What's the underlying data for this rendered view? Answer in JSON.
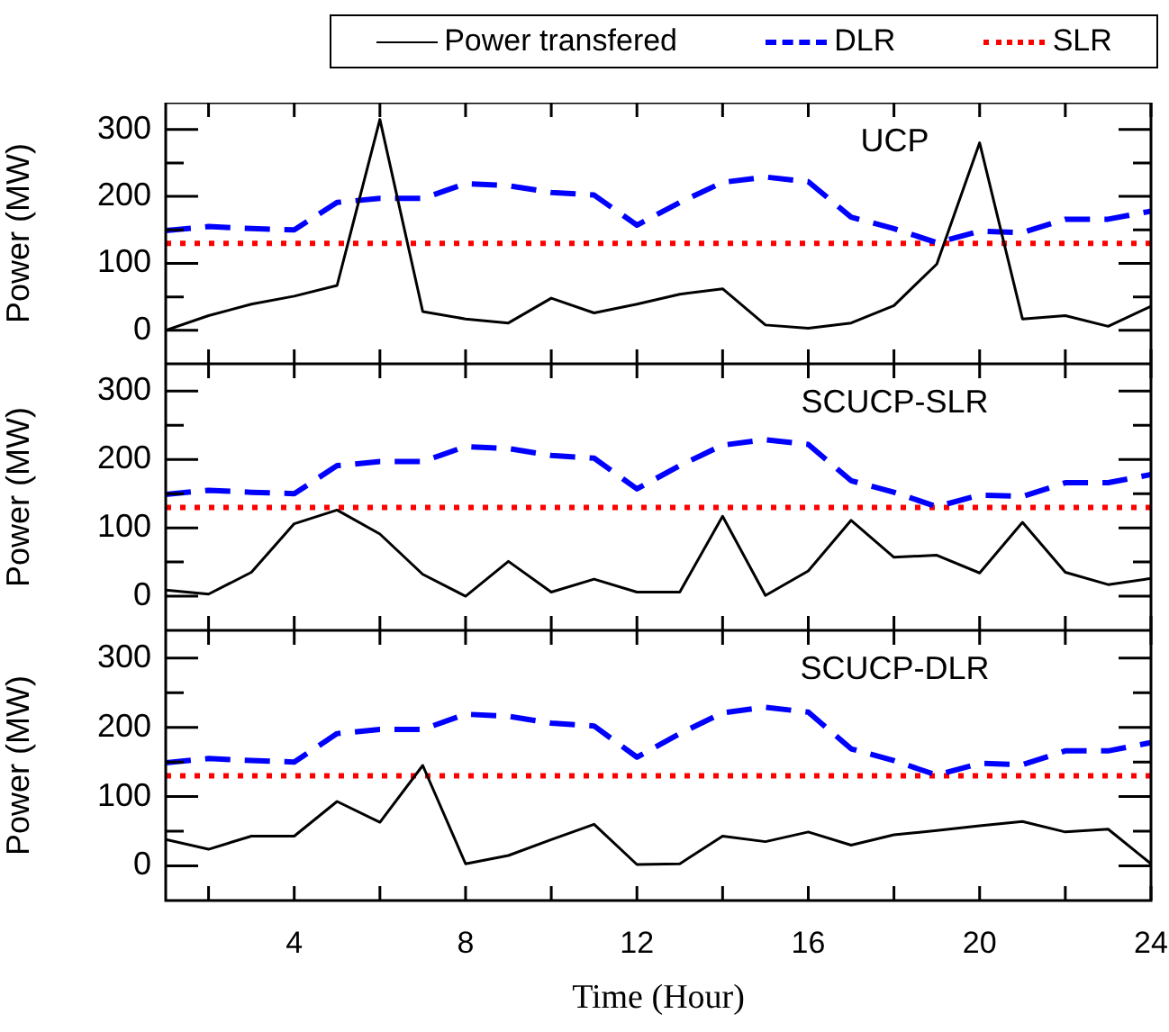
{
  "chart_data": [
    {
      "type": "line",
      "ylabel": "Power (MW)",
      "annotations": [
        "UCP"
      ],
      "legend": "top",
      "tick_labels": "y",
      "grid": false,
      "marker": "none",
      "x": [
        1,
        2,
        3,
        4,
        5,
        6,
        7,
        8,
        9,
        10,
        11,
        12,
        13,
        14,
        15,
        16,
        17,
        18,
        19,
        20,
        21,
        22,
        23,
        24
      ],
      "xlim": [
        1,
        24
      ],
      "xticks": [
        {
          "value": 2,
          "label": null
        },
        4,
        {
          "value": 6,
          "label": null
        },
        8,
        {
          "value": 10,
          "label": null
        },
        12,
        {
          "value": 14,
          "label": null
        },
        16,
        {
          "value": 18,
          "label": null
        },
        20,
        {
          "value": 22,
          "label": null
        },
        24
      ],
      "ylim": [
        -50,
        340
      ],
      "yticks": [
        0,
        {
          "value": 50,
          "label": null
        },
        100,
        {
          "value": 150,
          "label": null
        },
        200,
        {
          "value": 250,
          "label": null
        },
        300
      ],
      "series": [
        {
          "name": "Power transfered",
          "color": "#000000",
          "line_style": "solid",
          "values": [
            0,
            22,
            39,
            51,
            67,
            315,
            28,
            17,
            11,
            48,
            26,
            39,
            54,
            62,
            8,
            3,
            11,
            37,
            99,
            280,
            17,
            22,
            6,
            36
          ]
        },
        {
          "name": "DLR",
          "color": "#0000ff",
          "line_style": "dashed",
          "values": [
            149,
            155,
            152,
            150,
            191,
            197,
            197,
            219,
            216,
            206,
            202,
            157,
            191,
            221,
            229,
            222,
            169,
            152,
            131,
            148,
            146,
            166,
            166,
            178
          ]
        },
        {
          "name": "SLR",
          "color": "#ff0000",
          "line_style": "dotted",
          "values": [
            130,
            130,
            130,
            130,
            130,
            130,
            130,
            130,
            130,
            130,
            130,
            130,
            130,
            130,
            130,
            130,
            130,
            130,
            130,
            130,
            130,
            130,
            130,
            130
          ]
        }
      ]
    },
    {
      "type": "line",
      "ylabel": "Power (MW)",
      "annotations": [
        "SCUCP-SLR"
      ],
      "tick_labels": "y",
      "grid": false,
      "marker": "none",
      "x": [
        1,
        2,
        3,
        4,
        5,
        6,
        7,
        8,
        9,
        10,
        11,
        12,
        13,
        14,
        15,
        16,
        17,
        18,
        19,
        20,
        21,
        22,
        23,
        24
      ],
      "xlim": [
        1,
        24
      ],
      "xticks": [
        {
          "value": 2,
          "label": null
        },
        4,
        {
          "value": 6,
          "label": null
        },
        8,
        {
          "value": 10,
          "label": null
        },
        12,
        {
          "value": 14,
          "label": null
        },
        16,
        {
          "value": 18,
          "label": null
        },
        20,
        {
          "value": 22,
          "label": null
        },
        24
      ],
      "ylim": [
        -50,
        340
      ],
      "yticks": [
        0,
        {
          "value": 50,
          "label": null
        },
        100,
        {
          "value": 150,
          "label": null
        },
        200,
        {
          "value": 250,
          "label": null
        },
        300
      ],
      "series": [
        {
          "color": "#000000",
          "line_style": "solid",
          "values": [
            9,
            3,
            35,
            106,
            126,
            91,
            32,
            0,
            51,
            6,
            25,
            6,
            6,
            117,
            1,
            37,
            111,
            57,
            60,
            34,
            108,
            35,
            17,
            26
          ]
        },
        {
          "color": "#0000ff",
          "line_style": "dashed",
          "values": [
            149,
            155,
            152,
            150,
            191,
            197,
            197,
            219,
            216,
            206,
            202,
            157,
            191,
            221,
            229,
            222,
            169,
            152,
            131,
            148,
            146,
            166,
            166,
            178
          ]
        },
        {
          "color": "#ff0000",
          "line_style": "dotted",
          "values": [
            130,
            130,
            130,
            130,
            130,
            130,
            130,
            130,
            130,
            130,
            130,
            130,
            130,
            130,
            130,
            130,
            130,
            130,
            130,
            130,
            130,
            130,
            130,
            130
          ]
        }
      ]
    },
    {
      "type": "line",
      "xlabel": "Time (Hour)",
      "ylabel": "Power (MW)",
      "annotations": [
        "SCUCP-DLR"
      ],
      "grid": false,
      "marker": "none",
      "x": [
        1,
        2,
        3,
        4,
        5,
        6,
        7,
        8,
        9,
        10,
        11,
        12,
        13,
        14,
        15,
        16,
        17,
        18,
        19,
        20,
        21,
        22,
        23,
        24
      ],
      "xlim": [
        1,
        24
      ],
      "xticks": [
        {
          "value": 2,
          "label": null
        },
        4,
        {
          "value": 6,
          "label": null
        },
        8,
        {
          "value": 10,
          "label": null
        },
        12,
        {
          "value": 14,
          "label": null
        },
        16,
        {
          "value": 18,
          "label": null
        },
        20,
        {
          "value": 22,
          "label": null
        },
        24
      ],
      "ylim": [
        -50,
        340
      ],
      "yticks": [
        0,
        {
          "value": 50,
          "label": null
        },
        100,
        {
          "value": 150,
          "label": null
        },
        200,
        {
          "value": 250,
          "label": null
        },
        300
      ],
      "series": [
        {
          "color": "#000000",
          "line_style": "solid",
          "values": [
            38,
            24,
            43,
            43,
            93,
            63,
            145,
            3,
            15,
            38,
            60,
            2,
            3,
            43,
            35,
            49,
            30,
            45,
            51,
            58,
            64,
            49,
            53,
            3
          ]
        },
        {
          "color": "#0000ff",
          "line_style": "dashed",
          "values": [
            149,
            155,
            152,
            150,
            191,
            197,
            197,
            219,
            216,
            206,
            202,
            157,
            191,
            221,
            229,
            222,
            169,
            152,
            131,
            148,
            146,
            166,
            166,
            178
          ]
        },
        {
          "color": "#ff0000",
          "line_style": "dotted",
          "values": [
            130,
            130,
            130,
            130,
            130,
            130,
            130,
            130,
            130,
            130,
            130,
            130,
            130,
            130,
            130,
            130,
            130,
            130,
            130,
            130,
            130,
            130,
            130,
            130
          ]
        }
      ]
    }
  ]
}
